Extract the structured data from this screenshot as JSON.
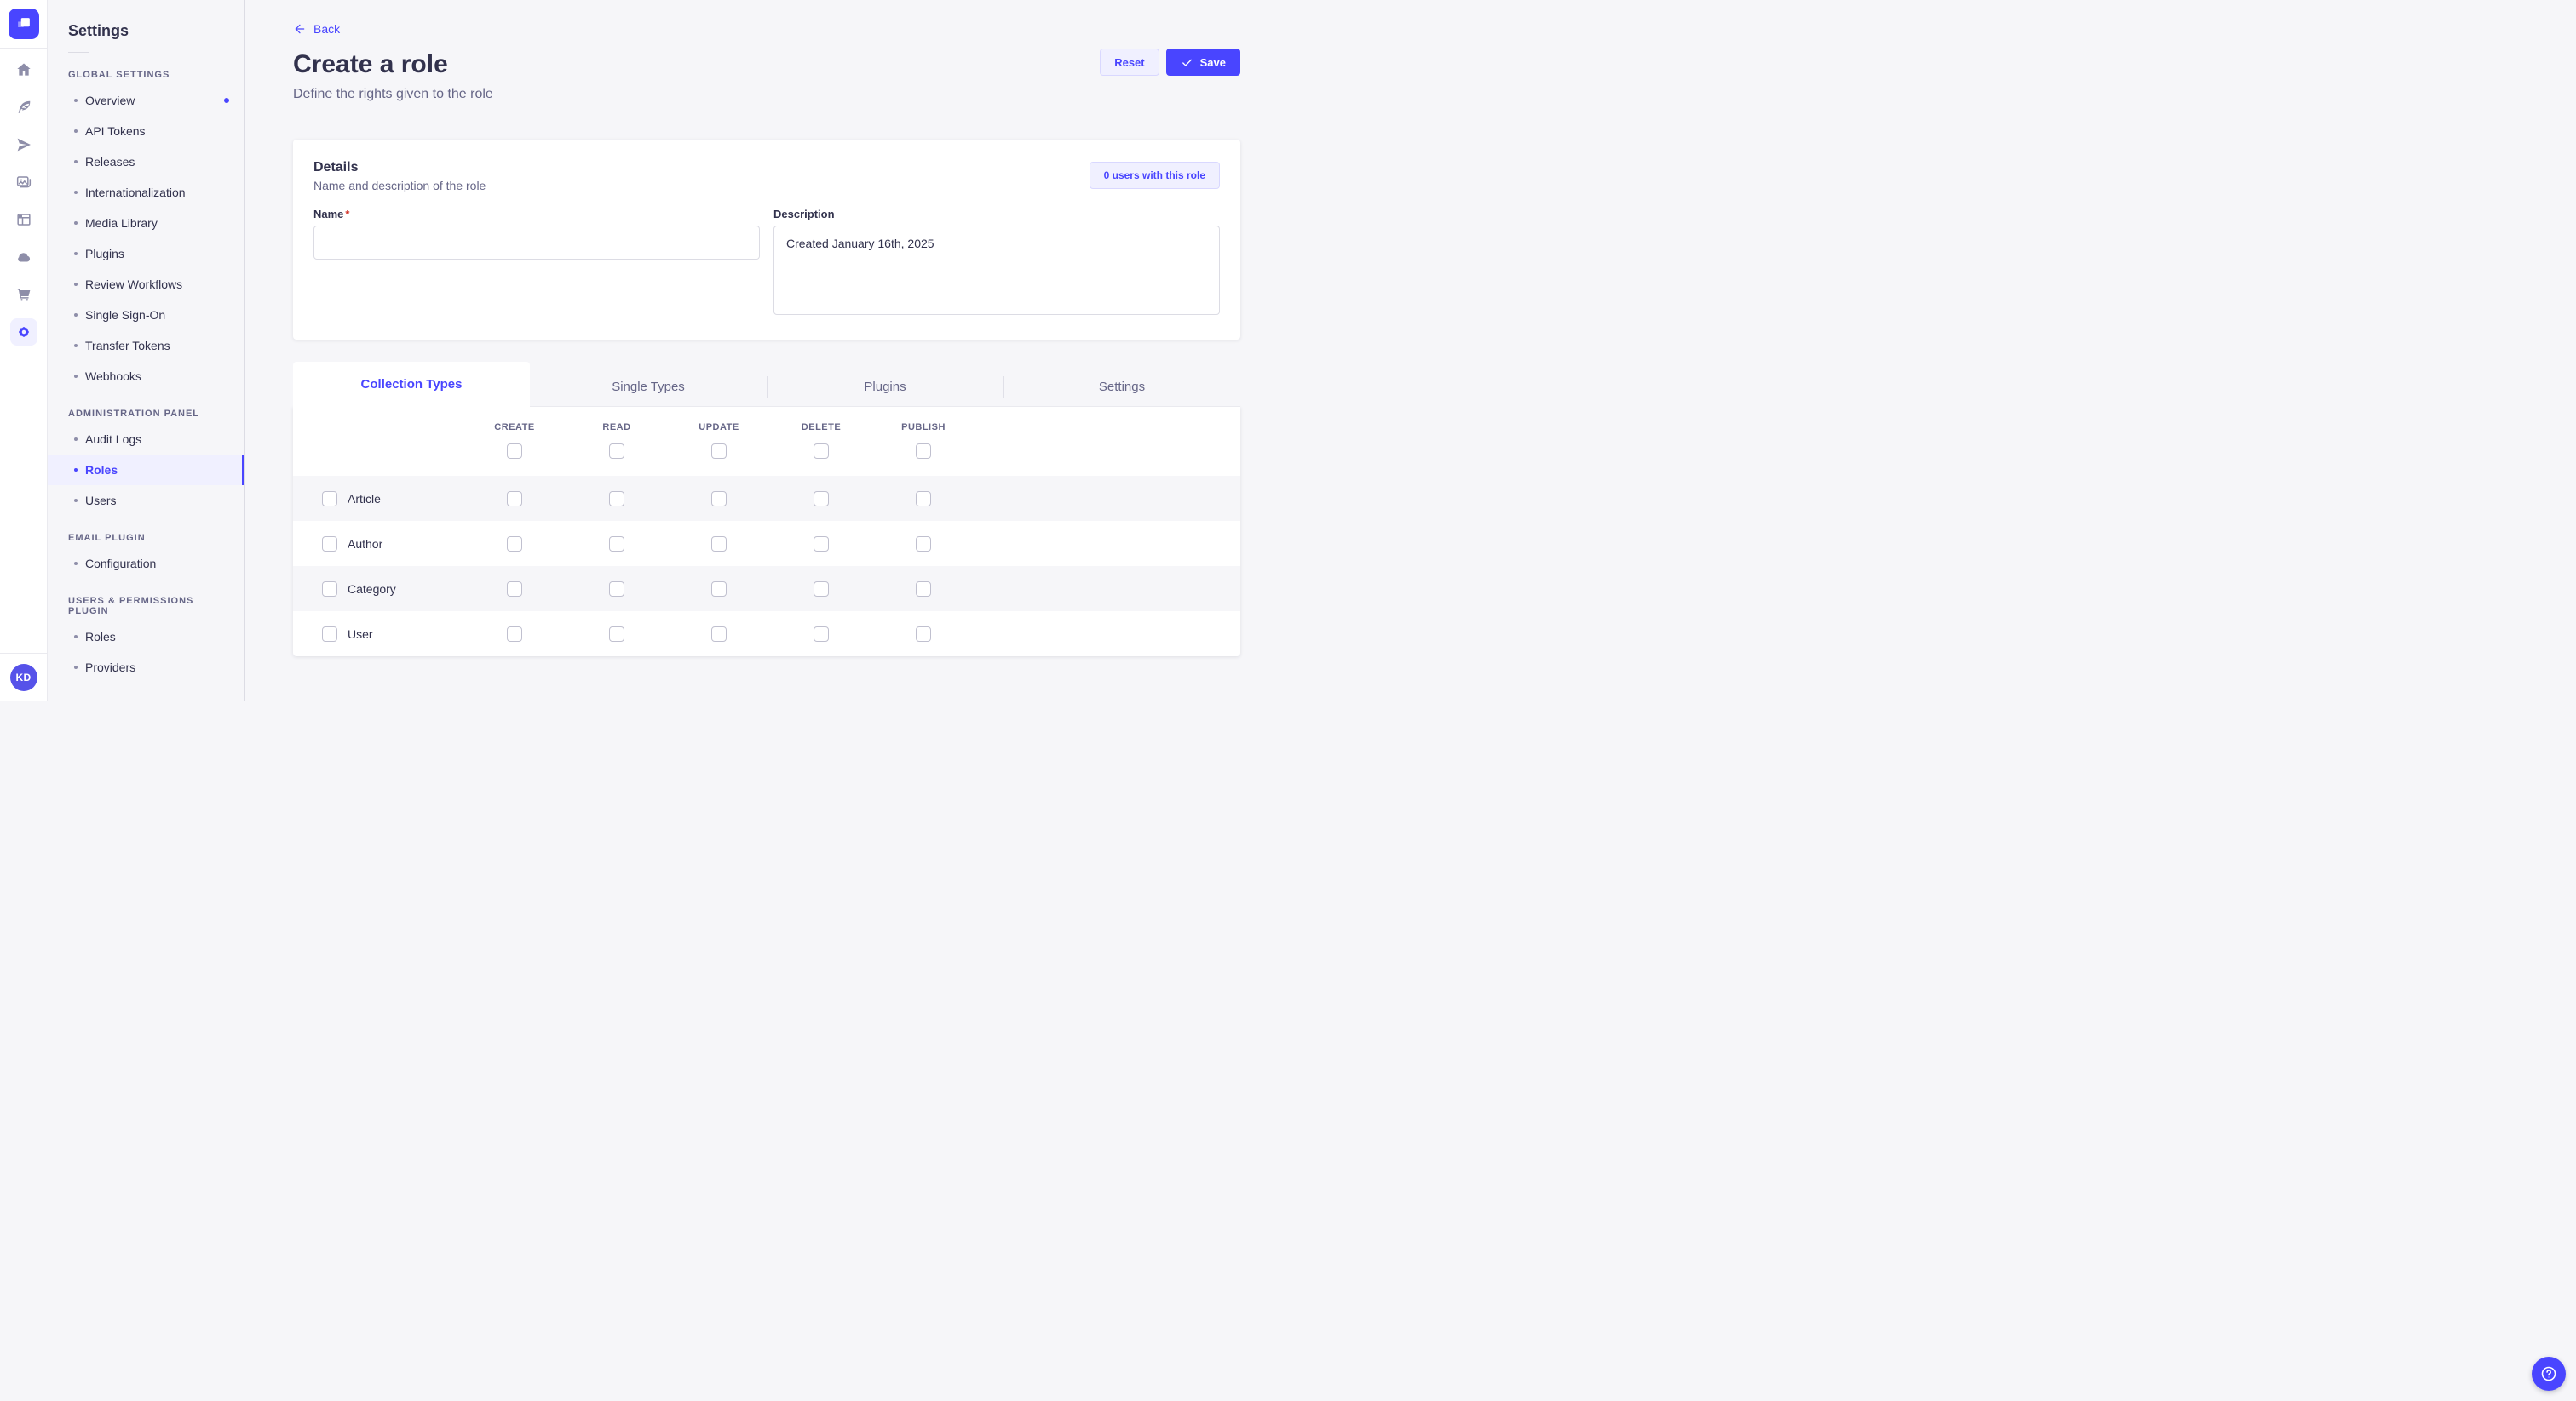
{
  "colors": {
    "accent": "#4945ff",
    "accent_soft": "#f0f0ff",
    "accent_border": "#d9d8ff",
    "text": "#32324d",
    "muted": "#666687",
    "input_border": "#dcdce4",
    "divider": "#eaeaef",
    "row_stripe": "#f6f6f9",
    "required_red": "#d02b20"
  },
  "rail": {
    "logo_icon": "strapi-logo",
    "icons": [
      {
        "name": "home-icon"
      },
      {
        "name": "feather-icon"
      },
      {
        "name": "paper-plane-icon"
      },
      {
        "name": "media-library-icon"
      },
      {
        "name": "layout-icon"
      },
      {
        "name": "cloud-icon"
      },
      {
        "name": "cart-icon"
      },
      {
        "name": "settings-icon",
        "active": true
      }
    ],
    "avatar_initials": "KD"
  },
  "sidebar": {
    "title": "Settings",
    "sections": [
      {
        "label": "GLOBAL SETTINGS",
        "items": [
          {
            "label": "Overview",
            "notification": true
          },
          {
            "label": "API Tokens"
          },
          {
            "label": "Releases"
          },
          {
            "label": "Internationalization"
          },
          {
            "label": "Media Library"
          },
          {
            "label": "Plugins"
          },
          {
            "label": "Review Workflows"
          },
          {
            "label": "Single Sign-On"
          },
          {
            "label": "Transfer Tokens"
          },
          {
            "label": "Webhooks"
          }
        ]
      },
      {
        "label": "ADMINISTRATION PANEL",
        "items": [
          {
            "label": "Audit Logs"
          },
          {
            "label": "Roles",
            "active": true
          },
          {
            "label": "Users"
          }
        ]
      },
      {
        "label": "EMAIL PLUGIN",
        "items": [
          {
            "label": "Configuration"
          }
        ]
      },
      {
        "label": "USERS & PERMISSIONS PLUGIN",
        "items": [
          {
            "label": "Roles"
          },
          {
            "label": "Providers"
          }
        ]
      }
    ]
  },
  "header": {
    "back_label": "Back",
    "title": "Create a role",
    "subtitle": "Define the rights given to the role",
    "reset_label": "Reset",
    "save_label": "Save"
  },
  "details": {
    "title": "Details",
    "subtitle": "Name and description of the role",
    "users_button": "0 users with this role",
    "name_label": "Name",
    "name_required": "*",
    "name_value": "",
    "description_label": "Description",
    "description_value": "Created January 16th, 2025"
  },
  "permissions": {
    "tabs": [
      {
        "label": "Collection Types",
        "active": true
      },
      {
        "label": "Single Types"
      },
      {
        "label": "Plugins"
      },
      {
        "label": "Settings"
      }
    ],
    "columns": [
      "Create",
      "Read",
      "Update",
      "Delete",
      "Publish"
    ],
    "rows": [
      {
        "label": "Article"
      },
      {
        "label": "Author"
      },
      {
        "label": "Category"
      },
      {
        "label": "User"
      }
    ]
  },
  "help": {
    "icon": "question-mark-icon"
  }
}
